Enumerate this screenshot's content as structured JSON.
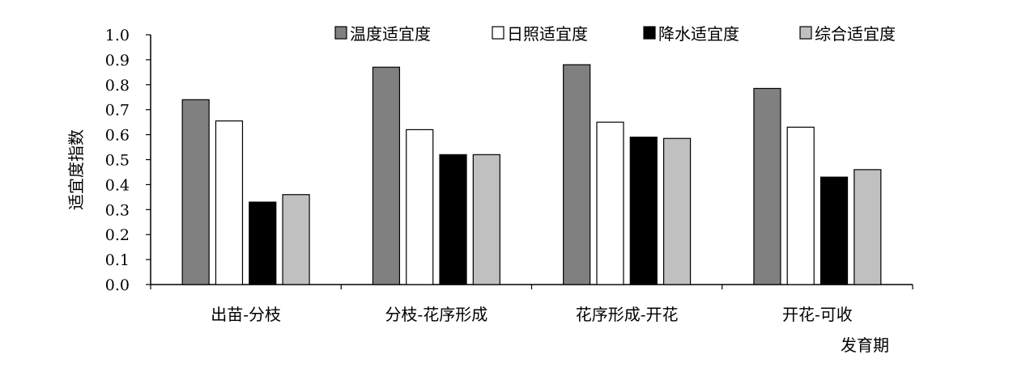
{
  "chart_data": {
    "type": "bar",
    "title": "",
    "xlabel": "发育期",
    "ylabel": "适宜度指数",
    "ylim": [
      0,
      1.0
    ],
    "yticks": [
      "0.0",
      "0.1",
      "0.2",
      "0.3",
      "0.4",
      "0.5",
      "0.6",
      "0.7",
      "0.8",
      "0.9",
      "1.0"
    ],
    "categories": [
      "出苗-分枝",
      "分枝-花序形成",
      "花序形成-开花",
      "开花-可收"
    ],
    "series": [
      {
        "name": "温度适宜度",
        "color": "#808080",
        "values": [
          0.74,
          0.87,
          0.88,
          0.785
        ]
      },
      {
        "name": "日照适宜度",
        "color": "#ffffff",
        "values": [
          0.655,
          0.62,
          0.65,
          0.63
        ]
      },
      {
        "name": "降水适宜度",
        "color": "#000000",
        "values": [
          0.33,
          0.52,
          0.59,
          0.43
        ]
      },
      {
        "name": "综合适宜度",
        "color": "#c0c0c0",
        "values": [
          0.36,
          0.52,
          0.585,
          0.46
        ]
      }
    ],
    "grid": false,
    "legend_position": "top"
  }
}
